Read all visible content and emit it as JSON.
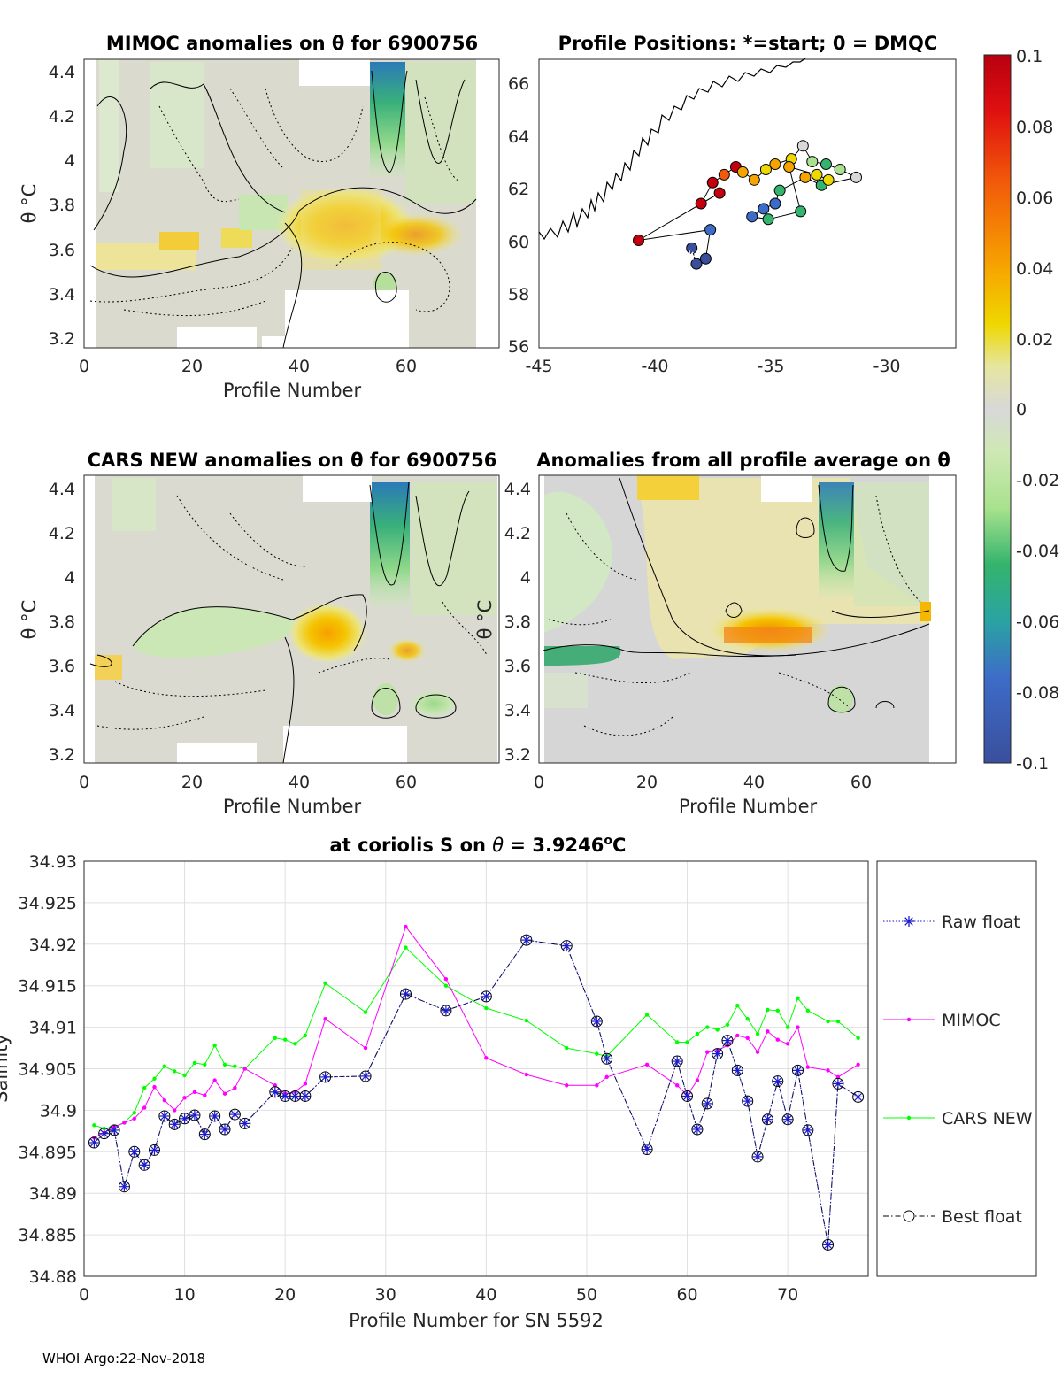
{
  "figure": {
    "footer": "WHOI Argo:22-Nov-2018"
  },
  "panels": {
    "mimoc": {
      "title": "MIMOC anomalies on θ  for 6900756",
      "xlabel": "Profile Number",
      "ylabel": "θ °C",
      "xticks": [
        "0",
        "20",
        "40",
        "60"
      ],
      "yticks": [
        "4.4",
        "4.2",
        "4",
        "3.8",
        "3.6",
        "3.4",
        "3.2"
      ]
    },
    "positions": {
      "title": "Profile Positions: *=start; 0 = DMQC",
      "xticks": [
        "-45",
        "-40",
        "-35",
        "-30"
      ],
      "yticks": [
        "66",
        "64",
        "62",
        "60",
        "58",
        "56"
      ]
    },
    "cars": {
      "title": "CARS NEW anomalies on θ for 6900756",
      "xlabel": "Profile Number",
      "ylabel": "θ °C",
      "xticks": [
        "0",
        "20",
        "40",
        "60"
      ],
      "yticks": [
        "4.4",
        "4.2",
        "4",
        "3.8",
        "3.6",
        "3.4",
        "3.2"
      ]
    },
    "avg": {
      "title": "Anomalies from all profile average on θ",
      "xlabel": "Profile Number",
      "ylabel": "θ °C",
      "xticks": [
        "0",
        "20",
        "40",
        "60"
      ],
      "yticks": [
        "4.4",
        "4.2",
        "4",
        "3.8",
        "3.6",
        "3.4",
        "3.2"
      ]
    }
  },
  "colorbar": {
    "ticks": [
      "0.1",
      "0.08",
      "0.06",
      "0.04",
      "0.02",
      "0",
      "-0.02",
      "-0.04",
      "-0.06",
      "-0.08",
      "-0.1"
    ],
    "colors": [
      "#c4000e",
      "#f25a0a",
      "#f7a400",
      "#efd700",
      "#d8d8d8",
      "#a8e28e",
      "#34b46c",
      "#3d6cc8",
      "#3a4f9c"
    ]
  },
  "chart_data": [
    {
      "type": "heatmap",
      "title": "MIMOC anomalies on θ  for 6900756",
      "xlabel": "Profile Number",
      "ylabel": "θ °C",
      "xlim": [
        0,
        77
      ],
      "ylim": [
        3.18,
        4.46
      ]
    },
    {
      "type": "scatter",
      "title": "Profile Positions: *=start; 0 = DMQC",
      "xlim": [
        -45,
        -27
      ],
      "ylim": [
        56,
        67
      ],
      "start": [
        -38.5,
        59.5
      ],
      "points": [
        [
          -38.4,
          59.8
        ],
        [
          -38.2,
          59.2
        ],
        [
          -37.8,
          59.4
        ],
        [
          -37.6,
          60.5
        ],
        [
          -40.7,
          60.1
        ],
        [
          -37.2,
          61.9
        ],
        [
          -38.0,
          61.5
        ],
        [
          -37.5,
          62.3
        ],
        [
          -37.0,
          62.6
        ],
        [
          -36.5,
          62.9
        ],
        [
          -36.2,
          62.7
        ],
        [
          -35.7,
          62.4
        ],
        [
          -35.2,
          62.8
        ],
        [
          -34.8,
          63.0
        ],
        [
          -34.1,
          63.2
        ],
        [
          -33.6,
          63.7
        ],
        [
          -33.2,
          63.1
        ],
        [
          -32.6,
          63.0
        ],
        [
          -32.0,
          62.8
        ],
        [
          -31.3,
          62.5
        ],
        [
          -32.8,
          62.2
        ],
        [
          -33.5,
          62.5
        ],
        [
          -34.6,
          62.0
        ],
        [
          -34.8,
          61.5
        ],
        [
          -35.3,
          61.3
        ],
        [
          -35.8,
          61.0
        ],
        [
          -35.1,
          60.9
        ],
        [
          -33.7,
          61.2
        ],
        [
          -34.2,
          62.9
        ],
        [
          -33.0,
          62.6
        ],
        [
          -32.5,
          62.4
        ]
      ],
      "point_values": [
        -0.09,
        -0.09,
        -0.09,
        -0.08,
        0.09,
        0.09,
        0.09,
        0.09,
        0.08,
        0.09,
        0.05,
        0.04,
        0.03,
        0.04,
        0.02,
        0.01,
        -0.03,
        -0.04,
        -0.03,
        -0.01,
        -0.04,
        0.04,
        -0.06,
        -0.07,
        -0.07,
        -0.07,
        -0.06,
        -0.06,
        0.05,
        0.03,
        0.02
      ]
    },
    {
      "type": "heatmap",
      "title": "CARS NEW anomalies on θ for 6900756",
      "xlabel": "Profile Number",
      "ylabel": "θ °C",
      "xlim": [
        0,
        77
      ],
      "ylim": [
        3.18,
        4.46
      ]
    },
    {
      "type": "heatmap",
      "title": "Anomalies from all profile average on θ",
      "xlabel": "Profile Number",
      "ylabel": "θ °C",
      "xlim": [
        0,
        77
      ],
      "ylim": [
        3.18,
        4.46
      ]
    },
    {
      "type": "line",
      "title": "at coriolis S on θ = 3.9246°C",
      "xlabel": "Profile Number for SN 5592",
      "ylabel": "Salinity",
      "xlim": [
        0,
        78
      ],
      "ylim": [
        34.88,
        34.93
      ],
      "xticks": [
        "0",
        "10",
        "20",
        "30",
        "40",
        "50",
        "60",
        "70"
      ],
      "yticks": [
        "34.93",
        "34.925",
        "34.92",
        "34.915",
        "34.91",
        "34.905",
        "34.9",
        "34.895",
        "34.89",
        "34.885",
        "34.88"
      ],
      "legend": [
        "Raw float",
        "MIMOC",
        "CARS NEW",
        "Best float"
      ],
      "series": [
        {
          "name": "MIMOC",
          "color": "#ff00ff",
          "x": [
            1,
            2,
            3,
            4,
            5,
            6,
            7,
            8,
            9,
            10,
            11,
            12,
            13,
            14,
            15,
            16,
            19,
            20,
            21,
            22,
            24,
            28,
            32,
            36,
            40,
            44,
            48,
            51,
            52,
            56,
            59,
            60,
            61,
            62,
            63,
            64,
            65,
            66,
            67,
            68,
            69,
            70,
            71,
            72,
            74,
            75,
            77
          ],
          "y": [
            34.8967,
            34.8973,
            34.898,
            34.8985,
            34.899,
            34.9003,
            34.9028,
            34.9012,
            34.9,
            34.9015,
            34.9022,
            34.9018,
            34.9036,
            34.902,
            34.9027,
            34.905,
            34.903,
            34.902,
            34.9022,
            34.9032,
            34.911,
            34.9075,
            34.9221,
            34.9158,
            34.9063,
            34.9043,
            34.903,
            34.903,
            34.904,
            34.9055,
            34.903,
            34.9018,
            34.9036,
            34.907,
            34.9072,
            34.9078,
            34.909,
            34.9087,
            34.907,
            34.9095,
            34.9085,
            34.908,
            34.91,
            34.9052,
            34.9048,
            34.904,
            34.9055
          ]
        },
        {
          "name": "CARS NEW",
          "color": "#00ff00",
          "x": [
            1,
            2,
            3,
            4,
            5,
            6,
            7,
            8,
            9,
            10,
            11,
            12,
            13,
            14,
            15,
            16,
            19,
            20,
            21,
            22,
            24,
            28,
            32,
            36,
            40,
            44,
            48,
            51,
            52,
            56,
            59,
            60,
            61,
            62,
            63,
            64,
            65,
            66,
            67,
            68,
            69,
            70,
            71,
            72,
            74,
            75,
            77
          ],
          "y": [
            34.8982,
            34.8978,
            34.898,
            34.8985,
            34.8997,
            34.9027,
            34.9038,
            34.9053,
            34.9047,
            34.9042,
            34.9057,
            34.9055,
            34.9078,
            34.9055,
            34.9053,
            34.905,
            34.9087,
            34.9085,
            34.908,
            34.909,
            34.9153,
            34.9118,
            34.9196,
            34.915,
            34.9123,
            34.9108,
            34.9075,
            34.9068,
            34.9065,
            34.9115,
            34.9082,
            34.9082,
            34.9092,
            34.91,
            34.9097,
            34.9103,
            34.9126,
            34.911,
            34.9092,
            34.9121,
            34.912,
            34.91,
            34.9135,
            34.912,
            34.9107,
            34.9107,
            34.9087
          ]
        },
        {
          "name": "Raw float",
          "color": "#1c1ccc",
          "x": [
            1,
            2,
            3,
            4,
            5,
            6,
            7,
            8,
            9,
            10,
            11,
            12,
            13,
            14,
            15,
            16,
            19,
            20,
            21,
            22,
            24,
            28,
            32,
            36,
            40,
            44,
            48,
            51,
            52,
            56,
            59,
            60,
            61,
            62,
            63,
            64,
            65,
            66,
            67,
            68,
            69,
            70,
            71,
            72,
            74,
            75,
            77
          ],
          "y": [
            34.8961,
            34.8972,
            34.8976,
            34.8908,
            34.895,
            34.8934,
            34.8952,
            34.8993,
            34.8983,
            34.899,
            34.8994,
            34.8971,
            34.8993,
            34.8977,
            34.8995,
            34.8984,
            34.9022,
            34.9017,
            34.9017,
            34.9017,
            34.904,
            34.9041,
            34.914,
            34.912,
            34.9137,
            34.9205,
            34.9198,
            34.9107,
            34.9062,
            34.8953,
            34.9059,
            34.9017,
            34.8977,
            34.9008,
            34.9068,
            34.9084,
            34.9048,
            34.9011,
            34.8944,
            34.8989,
            34.9035,
            34.8989,
            34.9048,
            34.8976,
            34.8838,
            34.9032,
            34.9016
          ]
        },
        {
          "name": "Best float",
          "color": "#000000",
          "x": [
            1,
            2,
            3,
            4,
            5,
            6,
            7,
            8,
            9,
            10,
            11,
            12,
            13,
            14,
            15,
            16,
            19,
            20,
            21,
            22,
            24,
            28,
            32,
            36,
            40,
            44,
            48,
            51,
            52,
            56,
            59,
            60,
            61,
            62,
            63,
            64,
            65,
            66,
            67,
            68,
            69,
            70,
            71,
            72,
            74,
            75,
            77
          ],
          "y": [
            34.8961,
            34.8972,
            34.8976,
            34.8908,
            34.895,
            34.8934,
            34.8952,
            34.8993,
            34.8983,
            34.899,
            34.8994,
            34.8971,
            34.8993,
            34.8977,
            34.8995,
            34.8984,
            34.9022,
            34.9017,
            34.9017,
            34.9017,
            34.904,
            34.9041,
            34.914,
            34.912,
            34.9137,
            34.9205,
            34.9198,
            34.9107,
            34.9062,
            34.8953,
            34.9059,
            34.9017,
            34.8977,
            34.9008,
            34.9068,
            34.9084,
            34.9048,
            34.9011,
            34.8944,
            34.8989,
            34.9035,
            34.8989,
            34.9048,
            34.8976,
            34.8838,
            34.9032,
            34.9016
          ]
        }
      ]
    }
  ]
}
